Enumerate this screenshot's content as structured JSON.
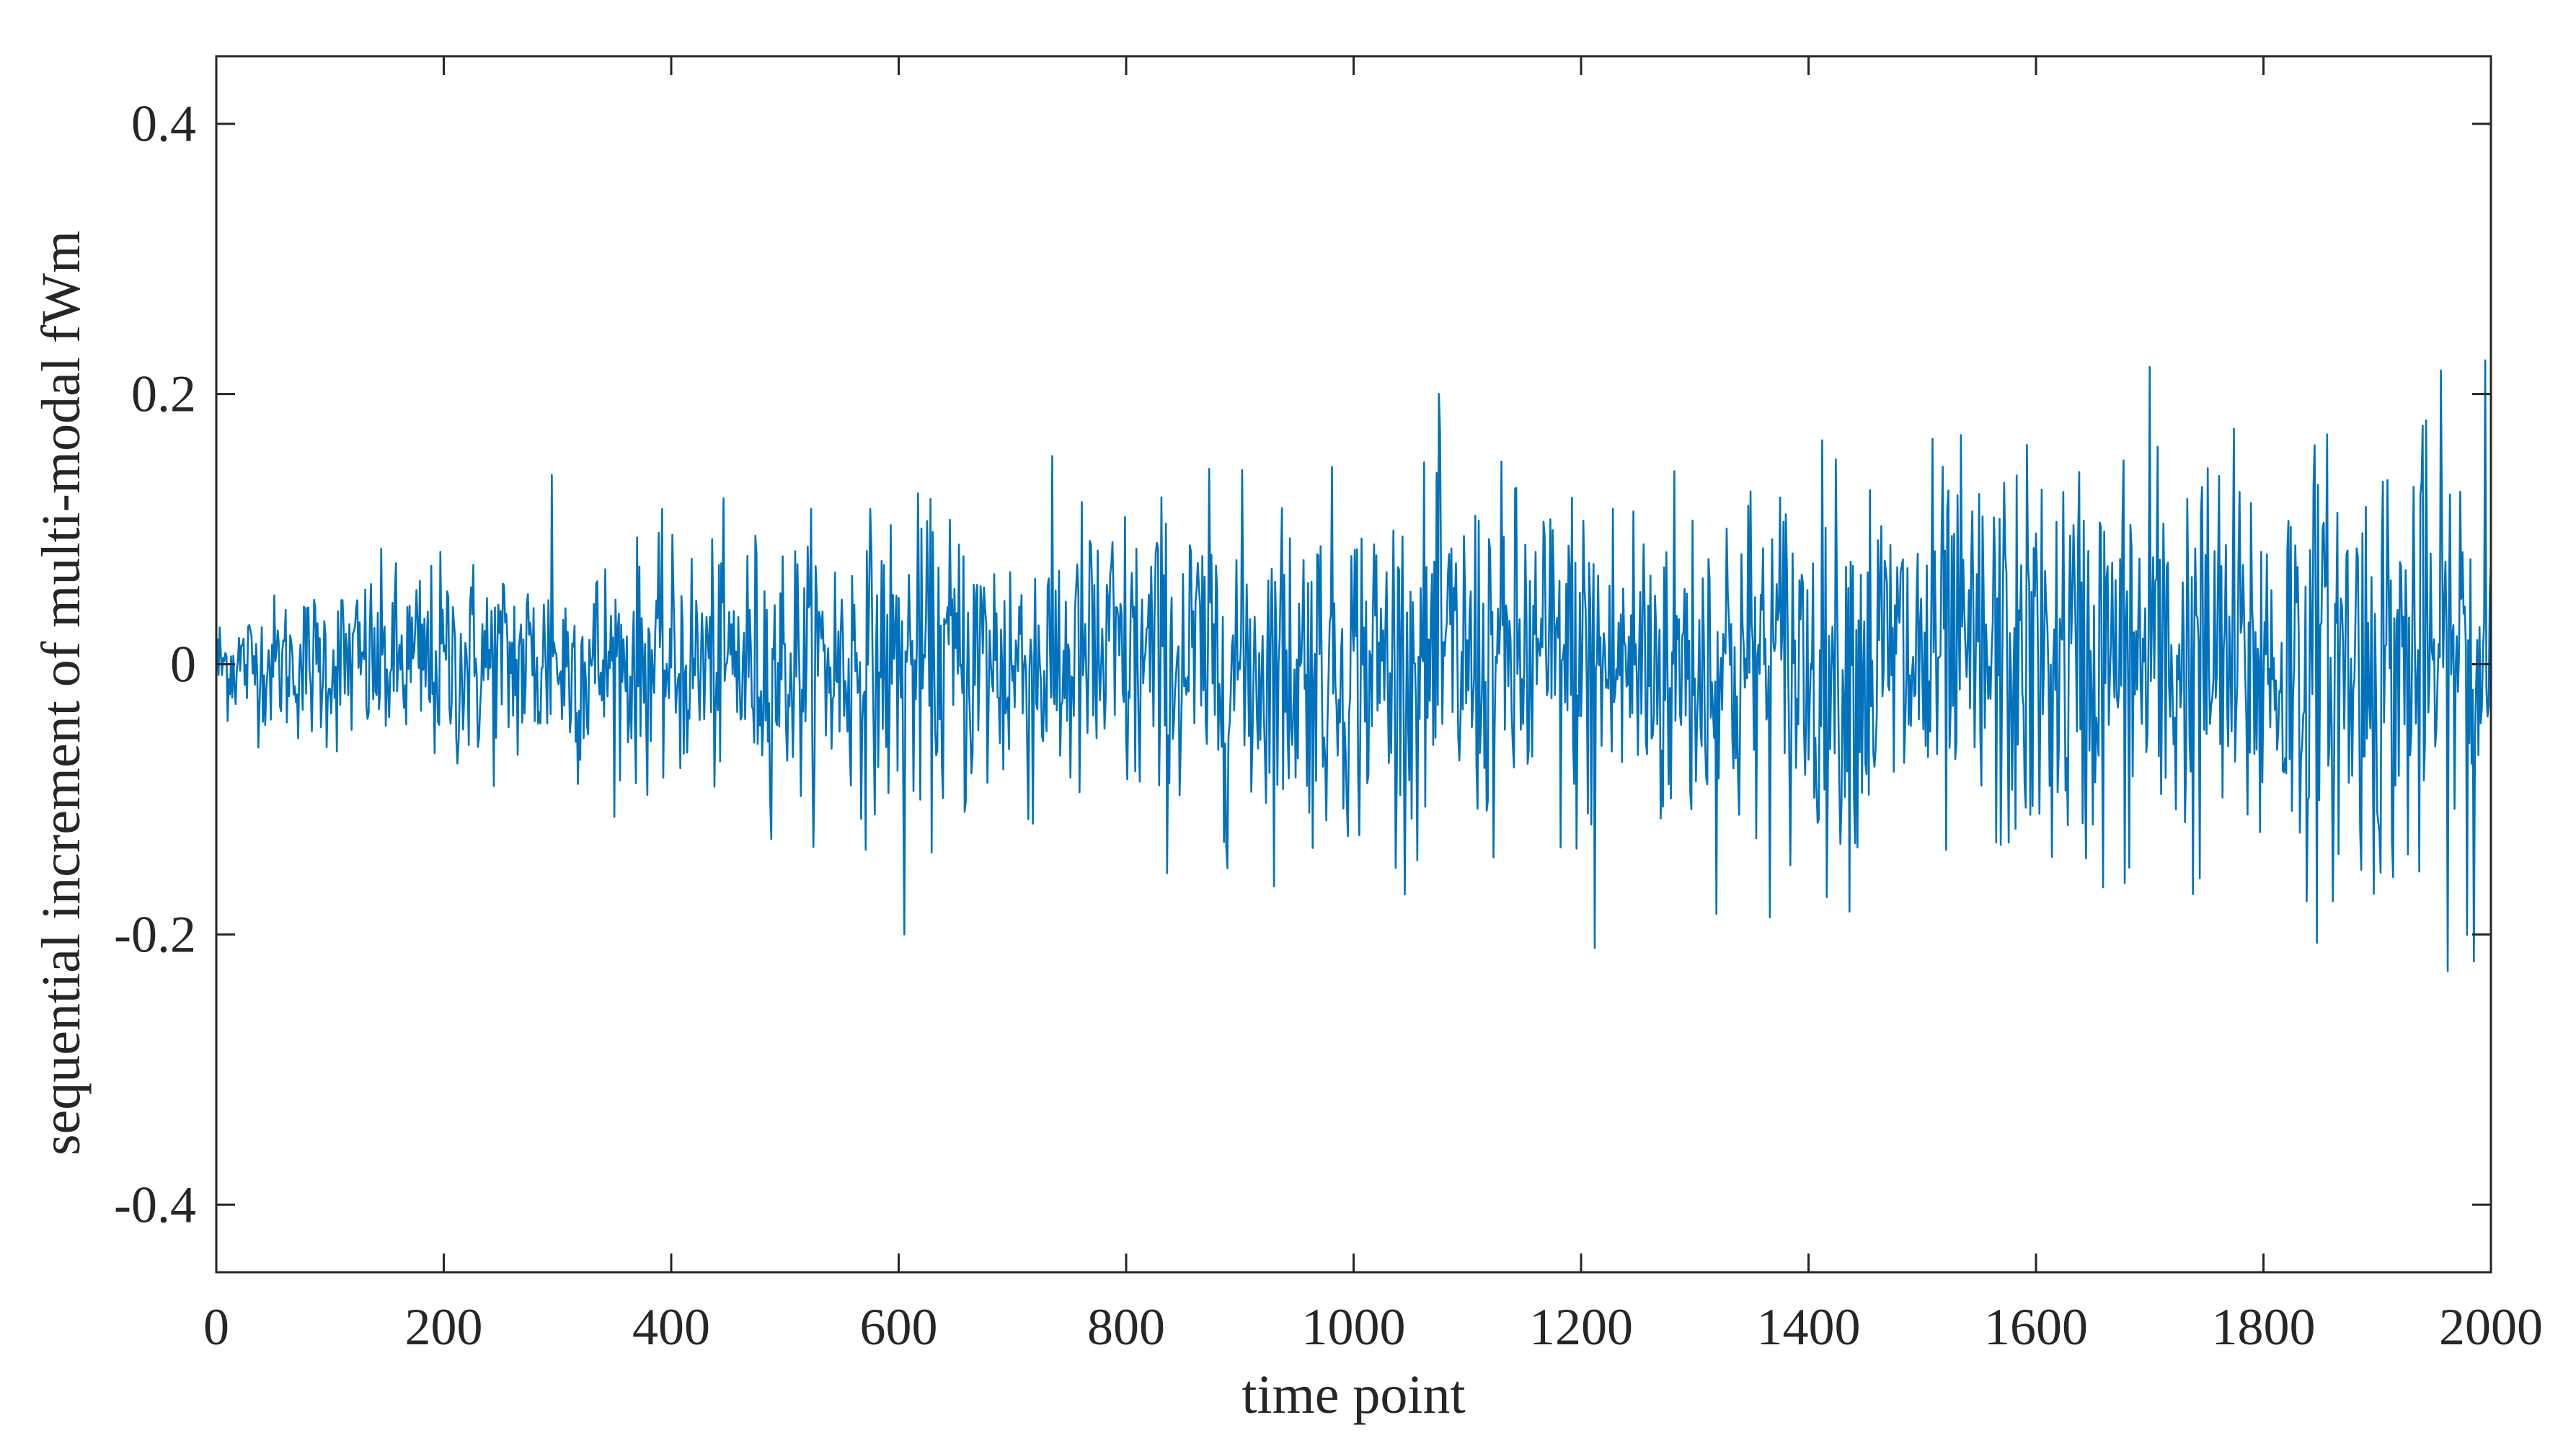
{
  "chart_data": {
    "type": "line",
    "title": "",
    "xlabel": "time point",
    "ylabel": "sequential increment of multi-modal fWm",
    "xlim": [
      0,
      2000
    ],
    "ylim": [
      -0.45,
      0.45
    ],
    "xticks": [
      0,
      200,
      400,
      600,
      800,
      1000,
      1200,
      1400,
      1600,
      1800,
      2000
    ],
    "xtick_labels": [
      "0",
      "200",
      "400",
      "600",
      "800",
      "1000",
      "1200",
      "1400",
      "1600",
      "1800",
      "2000"
    ],
    "yticks": [
      -0.4,
      -0.2,
      0,
      0.2,
      0.4
    ],
    "ytick_labels": [
      "-0.4",
      "-0.2",
      "0",
      "0.2",
      "0.4"
    ],
    "grid": false,
    "legend": "none",
    "box": true,
    "series": [
      {
        "color": "#0072BD",
        "n_points": 2001,
        "x_start": 0,
        "x_step": 1,
        "approx_envelope": {
          "x": [
            0,
            100,
            200,
            400,
            600,
            800,
            1000,
            1200,
            1400,
            1600,
            1800,
            2000
          ],
          "peak_abs": [
            0.05,
            0.08,
            0.1,
            0.11,
            0.14,
            0.15,
            0.16,
            0.17,
            0.18,
            0.19,
            0.2,
            0.22
          ]
        },
        "notable_points": [
          {
            "x": 295,
            "y": 0.14
          },
          {
            "x": 605,
            "y": -0.2
          },
          {
            "x": 1075,
            "y": 0.2
          },
          {
            "x": 1212,
            "y": -0.21
          },
          {
            "x": 1700,
            "y": 0.22
          },
          {
            "x": 1995,
            "y": 0.225
          },
          {
            "x": 1985,
            "y": -0.22
          }
        ]
      }
    ]
  }
}
